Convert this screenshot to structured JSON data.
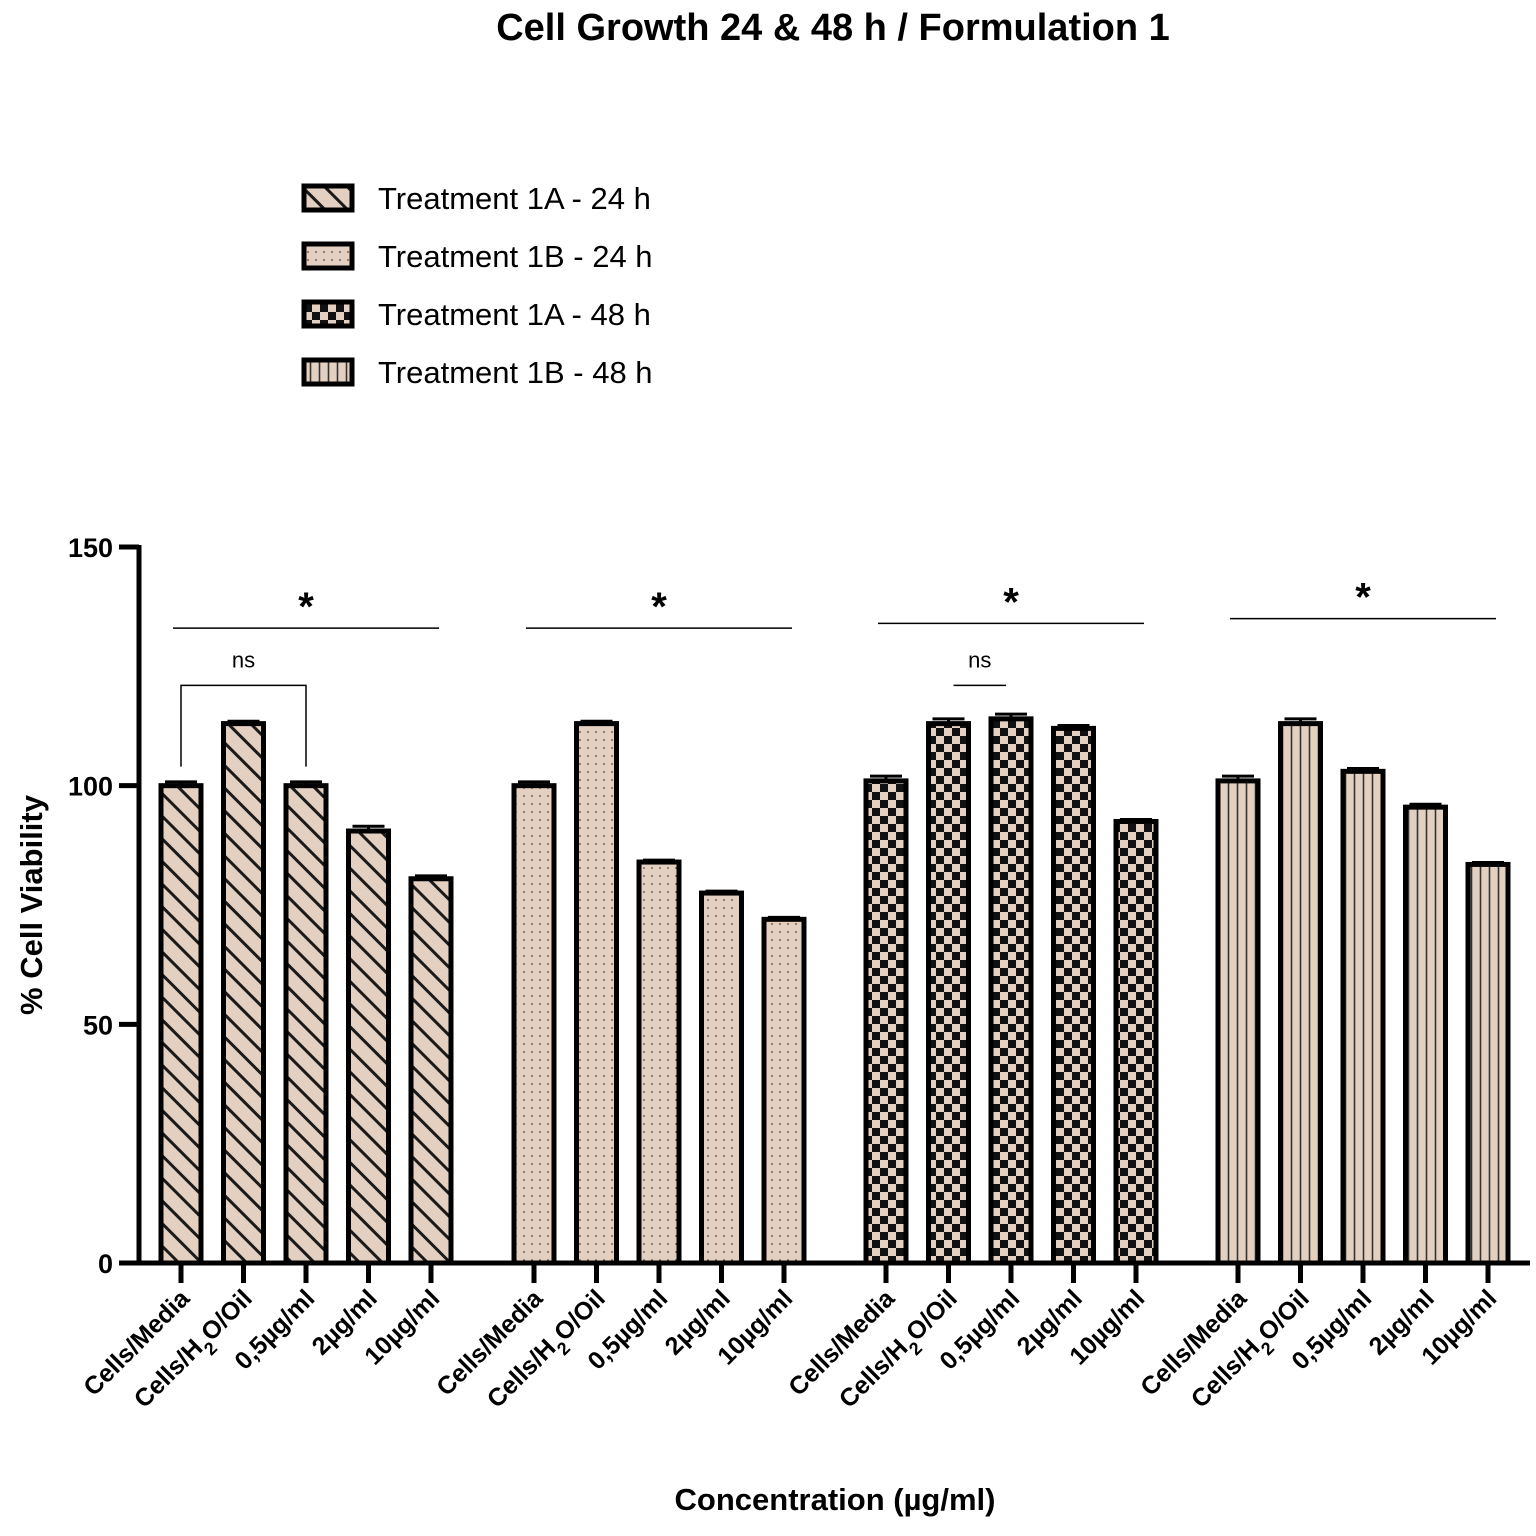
{
  "chart_data": {
    "type": "bar",
    "title": "Cell Growth 24 & 48 h / Formulation 1",
    "xlabel": "Concentration (µg/ml)",
    "ylabel": "% Cell Viability",
    "ylim": [
      0,
      150
    ],
    "yticks": [
      "0",
      "50",
      "100",
      "150"
    ],
    "bar_color": "#e3d0c1",
    "groups": [
      {
        "name": "Treatment 1A - 24 h",
        "pattern": "diagonal",
        "categories": [
          "Cells/Media",
          "Cells/H2O/Oil",
          "0,5µg/ml",
          "2µg/ml",
          "10µg/ml"
        ],
        "values": [
          100,
          113,
          100,
          90.5,
          80.5
        ],
        "errors": [
          0.8,
          0.5,
          0.8,
          1.0,
          0.6
        ],
        "significance": [
          {
            "label": "*",
            "from": 0,
            "to": 4,
            "y": 133
          },
          {
            "label": "ns",
            "from": 0,
            "to": 2,
            "y": 121,
            "bracket": true
          }
        ]
      },
      {
        "name": "Treatment 1B - 24 h",
        "pattern": "dots",
        "categories": [
          "Cells/Media",
          "Cells/H2O/Oil",
          "0,5µg/ml",
          "2µg/ml",
          "10µg/ml"
        ],
        "values": [
          100,
          113,
          84,
          77.5,
          72
        ],
        "errors": [
          0.8,
          0.5,
          0.4,
          0.4,
          0.4
        ],
        "significance": [
          {
            "label": "*",
            "from": 0,
            "to": 4,
            "y": 133
          }
        ]
      },
      {
        "name": "Treatment 1A - 48 h",
        "pattern": "checker",
        "categories": [
          "Cells/Media",
          "Cells/H2O/Oil",
          "0,5µg/ml",
          "2µg/ml",
          "10µg/ml"
        ],
        "values": [
          101,
          113,
          114,
          112,
          92.5
        ],
        "errors": [
          1.0,
          1.0,
          1.0,
          0.6,
          0.4
        ],
        "significance": [
          {
            "label": "*",
            "from": 0,
            "to": 4,
            "y": 134
          },
          {
            "label": "ns",
            "from": 1,
            "to": 2,
            "y": 121
          }
        ]
      },
      {
        "name": "Treatment 1B - 48 h",
        "pattern": "vertical",
        "categories": [
          "Cells/Media",
          "Cells/H2O/Oil",
          "0,5µg/ml",
          "2µg/ml",
          "10µg/ml"
        ],
        "values": [
          101,
          113,
          103,
          95.5,
          83.5
        ],
        "errors": [
          1.0,
          1.0,
          0.6,
          0.6,
          0.4
        ],
        "significance": [
          {
            "label": "*",
            "from": 0,
            "to": 4,
            "y": 135
          }
        ]
      }
    ],
    "legend": [
      "Treatment 1A - 24 h",
      "Treatment 1B - 24 h",
      "Treatment 1A - 48 h",
      "Treatment 1B - 48 h"
    ],
    "legend_position": "top-left",
    "grid": false
  }
}
